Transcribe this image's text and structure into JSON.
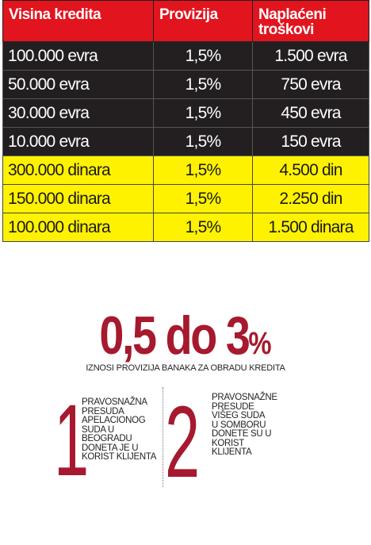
{
  "table": {
    "headers": [
      "Visina kredita",
      "Provizija",
      "Naplaćeni troškovi"
    ],
    "rows": [
      {
        "amount": "100.000 evra",
        "fee": "1,5%",
        "cost": "1.500 evra",
        "currency": "euro"
      },
      {
        "amount": "50.000 evra",
        "fee": "1,5%",
        "cost": "750 evra",
        "currency": "euro"
      },
      {
        "amount": "30.000 evra",
        "fee": "1,5%",
        "cost": "450 evra",
        "currency": "euro"
      },
      {
        "amount": "10.000 evra",
        "fee": "1,5%",
        "cost": "150 evra",
        "currency": "euro"
      },
      {
        "amount": "300.000 dinara",
        "fee": "1,5%",
        "cost": "4.500 din",
        "currency": "din"
      },
      {
        "amount": "150.000 dinara",
        "fee": "1,5%",
        "cost": "2.250 din",
        "currency": "din"
      },
      {
        "amount": "100.000 dinara",
        "fee": "1,5%",
        "cost": "1.500 dinara",
        "currency": "din"
      }
    ]
  },
  "highlight": {
    "range": "0,5 do 3",
    "percent_sign": "%",
    "caption": "IZNOSI PROVIZIJA BANAKA ZA OBRADU KREDITA"
  },
  "facts": [
    {
      "number": "1",
      "text": "PRAVOSNAŽNA\nPRESUDA\nAPELACIONOG\nSUDA U\nBEOGRADU\nDONETA JE U\nKORIST KLIJENTA"
    },
    {
      "number": "2",
      "text": "PRAVOSNAŽNE\nPRESUDE\nVIŠEG SUDA\nU SOMBORU\nDONETE SU U\nKORIST\nKLIJENTA"
    }
  ],
  "colors": {
    "header_red": "#e2141d",
    "euro_row": "#231f20",
    "dinar_row": "#fff200",
    "accent": "#a6192e"
  }
}
